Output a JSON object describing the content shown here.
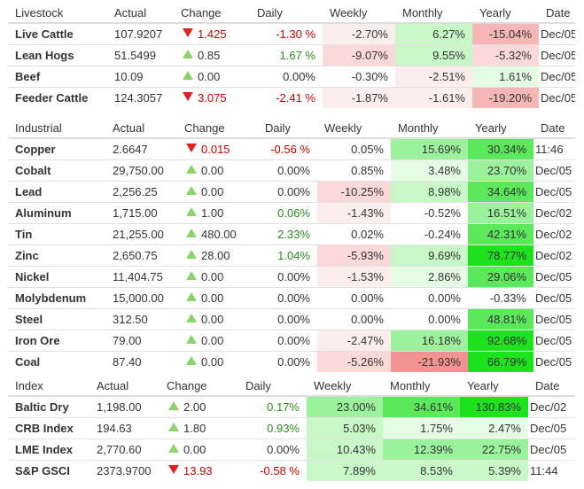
{
  "colors": {
    "arrow_up": "#8cd36a",
    "arrow_down": "#dd2222",
    "text_red": "#cc0000",
    "text_green": "#2e8b22",
    "heat_pos": [
      "#e5fce5",
      "#c8f8c8",
      "#9cf29c",
      "#5be85b",
      "#1fe21f"
    ],
    "heat_neg": [
      "#fdeeee",
      "#fbd9d9",
      "#f6b6b6",
      "#f29292"
    ]
  },
  "sections": [
    {
      "name": "Livestock",
      "headers": [
        "Livestock",
        "Actual",
        "Change",
        "Daily",
        "Weekly",
        "Monthly",
        "Yearly",
        "Date"
      ],
      "rows": [
        {
          "name": "Live Cattle",
          "actual": "107.9207",
          "dir": "down",
          "change": "1.425",
          "daily": "-1.30 %",
          "weekly": "-2.70%",
          "monthly": "6.27%",
          "yearly": "-15.04%",
          "date": "Dec/05"
        },
        {
          "name": "Lean Hogs",
          "actual": "51.5499",
          "dir": "up",
          "change": "0.85",
          "daily": "1.67 %",
          "weekly": "-9.07%",
          "monthly": "9.55%",
          "yearly": "-5.32%",
          "date": "Dec/05"
        },
        {
          "name": "Beef",
          "actual": "10.09",
          "dir": "up",
          "change": "0.00",
          "daily": "0.00%",
          "weekly": "-0.30%",
          "monthly": "-2.51%",
          "yearly": "1.61%",
          "date": "Dec/05"
        },
        {
          "name": "Feeder Cattle",
          "actual": "124.3057",
          "dir": "down",
          "change": "3.075",
          "daily": "-2.41 %",
          "weekly": "-1.87%",
          "monthly": "-1.61%",
          "yearly": "-19.20%",
          "date": "Dec/05"
        }
      ]
    },
    {
      "name": "Industrial",
      "headers": [
        "Industrial",
        "Actual",
        "Change",
        "Daily",
        "Weekly",
        "Monthly",
        "Yearly",
        "Date"
      ],
      "rows": [
        {
          "name": "Copper",
          "actual": "2.6647",
          "dir": "down",
          "change": "0.015",
          "daily": "-0.56 %",
          "weekly": "0.05%",
          "monthly": "15.69%",
          "yearly": "30.34%",
          "date": "11:46"
        },
        {
          "name": "Cobalt",
          "actual": "29,750.00",
          "dir": "up",
          "change": "0.00",
          "daily": "0.00%",
          "weekly": "0.85%",
          "monthly": "3.48%",
          "yearly": "23.70%",
          "date": "Dec/05"
        },
        {
          "name": "Lead",
          "actual": "2,256.25",
          "dir": "up",
          "change": "0.00",
          "daily": "0.00%",
          "weekly": "-10.25%",
          "monthly": "8.98%",
          "yearly": "34.64%",
          "date": "Dec/05"
        },
        {
          "name": "Aluminum",
          "actual": "1,715.00",
          "dir": "up",
          "change": "1.00",
          "daily": "0.06%",
          "weekly": "-1.43%",
          "monthly": "-0.52%",
          "yearly": "16.51%",
          "date": "Dec/02"
        },
        {
          "name": "Tin",
          "actual": "21,255.00",
          "dir": "up",
          "change": "480.00",
          "daily": "2.33%",
          "weekly": "0.02%",
          "monthly": "-0.24%",
          "yearly": "42.31%",
          "date": "Dec/02"
        },
        {
          "name": "Zinc",
          "actual": "2,650.75",
          "dir": "up",
          "change": "28.00",
          "daily": "1.04%",
          "weekly": "-5.93%",
          "monthly": "9.69%",
          "yearly": "78.77%",
          "date": "Dec/02"
        },
        {
          "name": "Nickel",
          "actual": "11,404.75",
          "dir": "up",
          "change": "0.00",
          "daily": "0.00%",
          "weekly": "-1.53%",
          "monthly": "2.86%",
          "yearly": "29.06%",
          "date": "Dec/05"
        },
        {
          "name": "Molybdenum",
          "actual": "15,000.00",
          "dir": "up",
          "change": "0.00",
          "daily": "0.00%",
          "weekly": "0.00%",
          "monthly": "0.00%",
          "yearly": "-0.33%",
          "date": "Dec/05"
        },
        {
          "name": "Steel",
          "actual": "312.50",
          "dir": "up",
          "change": "0.00",
          "daily": "0.00%",
          "weekly": "0.00%",
          "monthly": "0.00%",
          "yearly": "48.81%",
          "date": "Dec/05"
        },
        {
          "name": "Iron Ore",
          "actual": "79.00",
          "dir": "up",
          "change": "0.00",
          "daily": "0.00%",
          "weekly": "-2.47%",
          "monthly": "16.18%",
          "yearly": "92.68%",
          "date": "Dec/05"
        },
        {
          "name": "Coal",
          "actual": "87.40",
          "dir": "up",
          "change": "0.00",
          "daily": "0.00%",
          "weekly": "-5.26%",
          "monthly": "-21.93%",
          "yearly": "66.79%",
          "date": "Dec/05"
        }
      ]
    },
    {
      "name": "Index",
      "headers": [
        "Index",
        "Actual",
        "Change",
        "Daily",
        "Weekly",
        "Monthly",
        "Yearly",
        "Date"
      ],
      "rows": [
        {
          "name": "Baltic Dry",
          "actual": "1,198.00",
          "dir": "up",
          "change": "2.00",
          "daily": "0.17%",
          "weekly": "23.00%",
          "monthly": "34.61%",
          "yearly": "130.83%",
          "date": "Dec/02"
        },
        {
          "name": "CRB Index",
          "actual": "194.63",
          "dir": "up",
          "change": "1.80",
          "daily": "0.93%",
          "weekly": "5.03%",
          "monthly": "1.75%",
          "yearly": "2.47%",
          "date": "Dec/05"
        },
        {
          "name": "LME Index",
          "actual": "2,770.60",
          "dir": "up",
          "change": "0.00",
          "daily": "0.00%",
          "weekly": "10.43%",
          "monthly": "12.39%",
          "yearly": "22.75%",
          "date": "Dec/05"
        },
        {
          "name": "S&P GSCI",
          "actual": "2373.9700",
          "dir": "down",
          "change": "13.93",
          "daily": "-0.58 %",
          "weekly": "7.89%",
          "monthly": "8.53%",
          "yearly": "5.39%",
          "date": "11:44"
        }
      ]
    }
  ]
}
